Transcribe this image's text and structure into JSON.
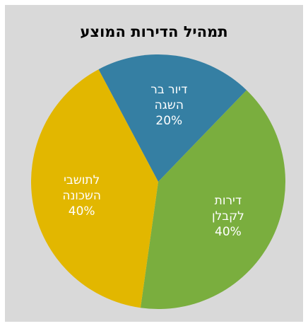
{
  "chart_data": {
    "type": "pie",
    "title": "תמהיל הדירות המוצע",
    "slices": [
      {
        "label_lines": [
          "דיור בר",
          "השגה"
        ],
        "percent_label": "20%",
        "value": 20,
        "color": "#357fa3"
      },
      {
        "label_lines": [
          "דירות",
          "לקבלן"
        ],
        "percent_label": "40%",
        "value": 40,
        "color": "#7aae3e"
      },
      {
        "label_lines": [
          "לתושבי",
          "השכונה"
        ],
        "percent_label": "40%",
        "value": 40,
        "color": "#e2b700"
      }
    ],
    "start_angle_deg": -28,
    "legend": "none",
    "grid": false
  }
}
